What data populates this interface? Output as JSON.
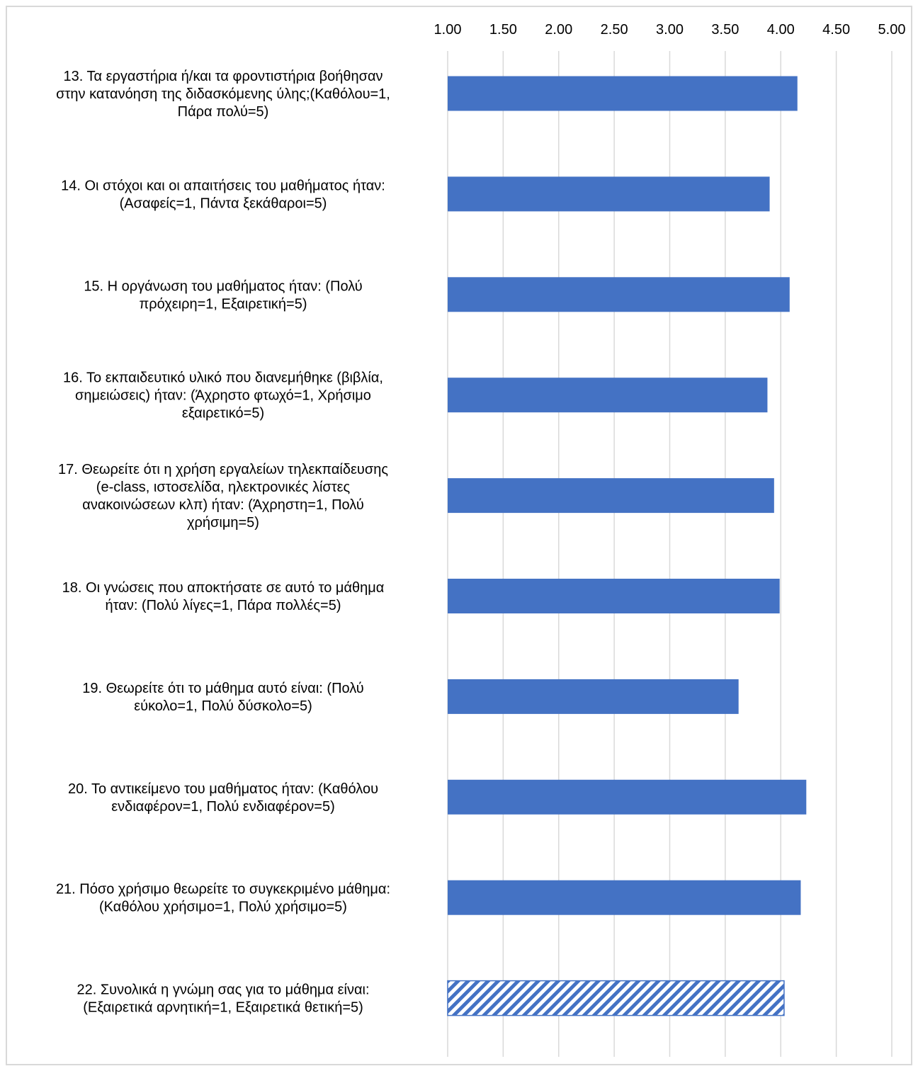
{
  "chart_data": {
    "type": "bar",
    "orientation": "horizontal",
    "xlim": [
      1.0,
      5.0
    ],
    "ticks": [
      "1.00",
      "1.50",
      "2.00",
      "2.50",
      "3.00",
      "3.50",
      "4.00",
      "4.50",
      "5.00"
    ],
    "grid": true,
    "legend": "none",
    "colors": {
      "bar": "#4472c4",
      "grid": "#d9d9d9"
    },
    "categories": [
      [
        "13. Τα εργαστήρια ή/και τα φροντιστήρια βοήθησαν",
        "στην κατανόηση της διδασκόμενης ύλης;(Καθόλου=1,",
        "Πάρα πολύ=5)"
      ],
      [
        "14. Οι στόχοι και οι απαιτήσεις του μαθήματος ήταν:",
        "(Ασαφείς=1, Πάντα ξεκάθαροι=5)"
      ],
      [
        "15. Η οργάνωση του μαθήματος ήταν: (Πολύ",
        "πρόχειρη=1, Εξαιρετική=5)"
      ],
      [
        "16. Το εκπαιδευτικό υλικό που διανεμήθηκε (βιβλία,",
        "σημειώσεις) ήταν: (Άχρηστο φτωχό=1, Χρήσιμο",
        "εξαιρετικό=5)"
      ],
      [
        "17. Θεωρείτε ότι η χρήση εργαλείων τηλεκπαίδευσης",
        "(e-class, ιστοσελίδα, ηλεκτρονικές λίστες",
        "ανακοινώσεων κλπ) ήταν: (Άχρηστη=1, Πολύ",
        "χρήσιμη=5)"
      ],
      [
        "18. Οι γνώσεις που αποκτήσατε σε αυτό το μάθημα",
        "ήταν: (Πολύ λίγες=1, Πάρα πολλές=5)"
      ],
      [
        "19. Θεωρείτε ότι το μάθημα αυτό είναι: (Πολύ",
        "εύκολο=1, Πολύ δύσκολο=5)"
      ],
      [
        "20. Το αντικείμενο του μαθήματος ήταν: (Καθόλου",
        "ενδιαφέρον=1, Πολύ ενδιαφέρον=5)"
      ],
      [
        "21. Πόσο χρήσιμο θεωρείτε το συγκεκριμένο μάθημα:",
        "(Καθόλου χρήσιμο=1, Πολύ χρήσιμο=5)"
      ],
      [
        "22. Συνολικά η γνώμη σας για το μάθημα είναι:",
        "(Εξαιρετικά αρνητική=1, Εξαιρετικά θετική=5)"
      ]
    ],
    "values": [
      4.15,
      3.9,
      4.08,
      3.88,
      3.94,
      3.99,
      3.62,
      4.23,
      4.18,
      4.03
    ],
    "hatched": [
      false,
      false,
      false,
      false,
      false,
      false,
      false,
      false,
      false,
      true
    ]
  }
}
